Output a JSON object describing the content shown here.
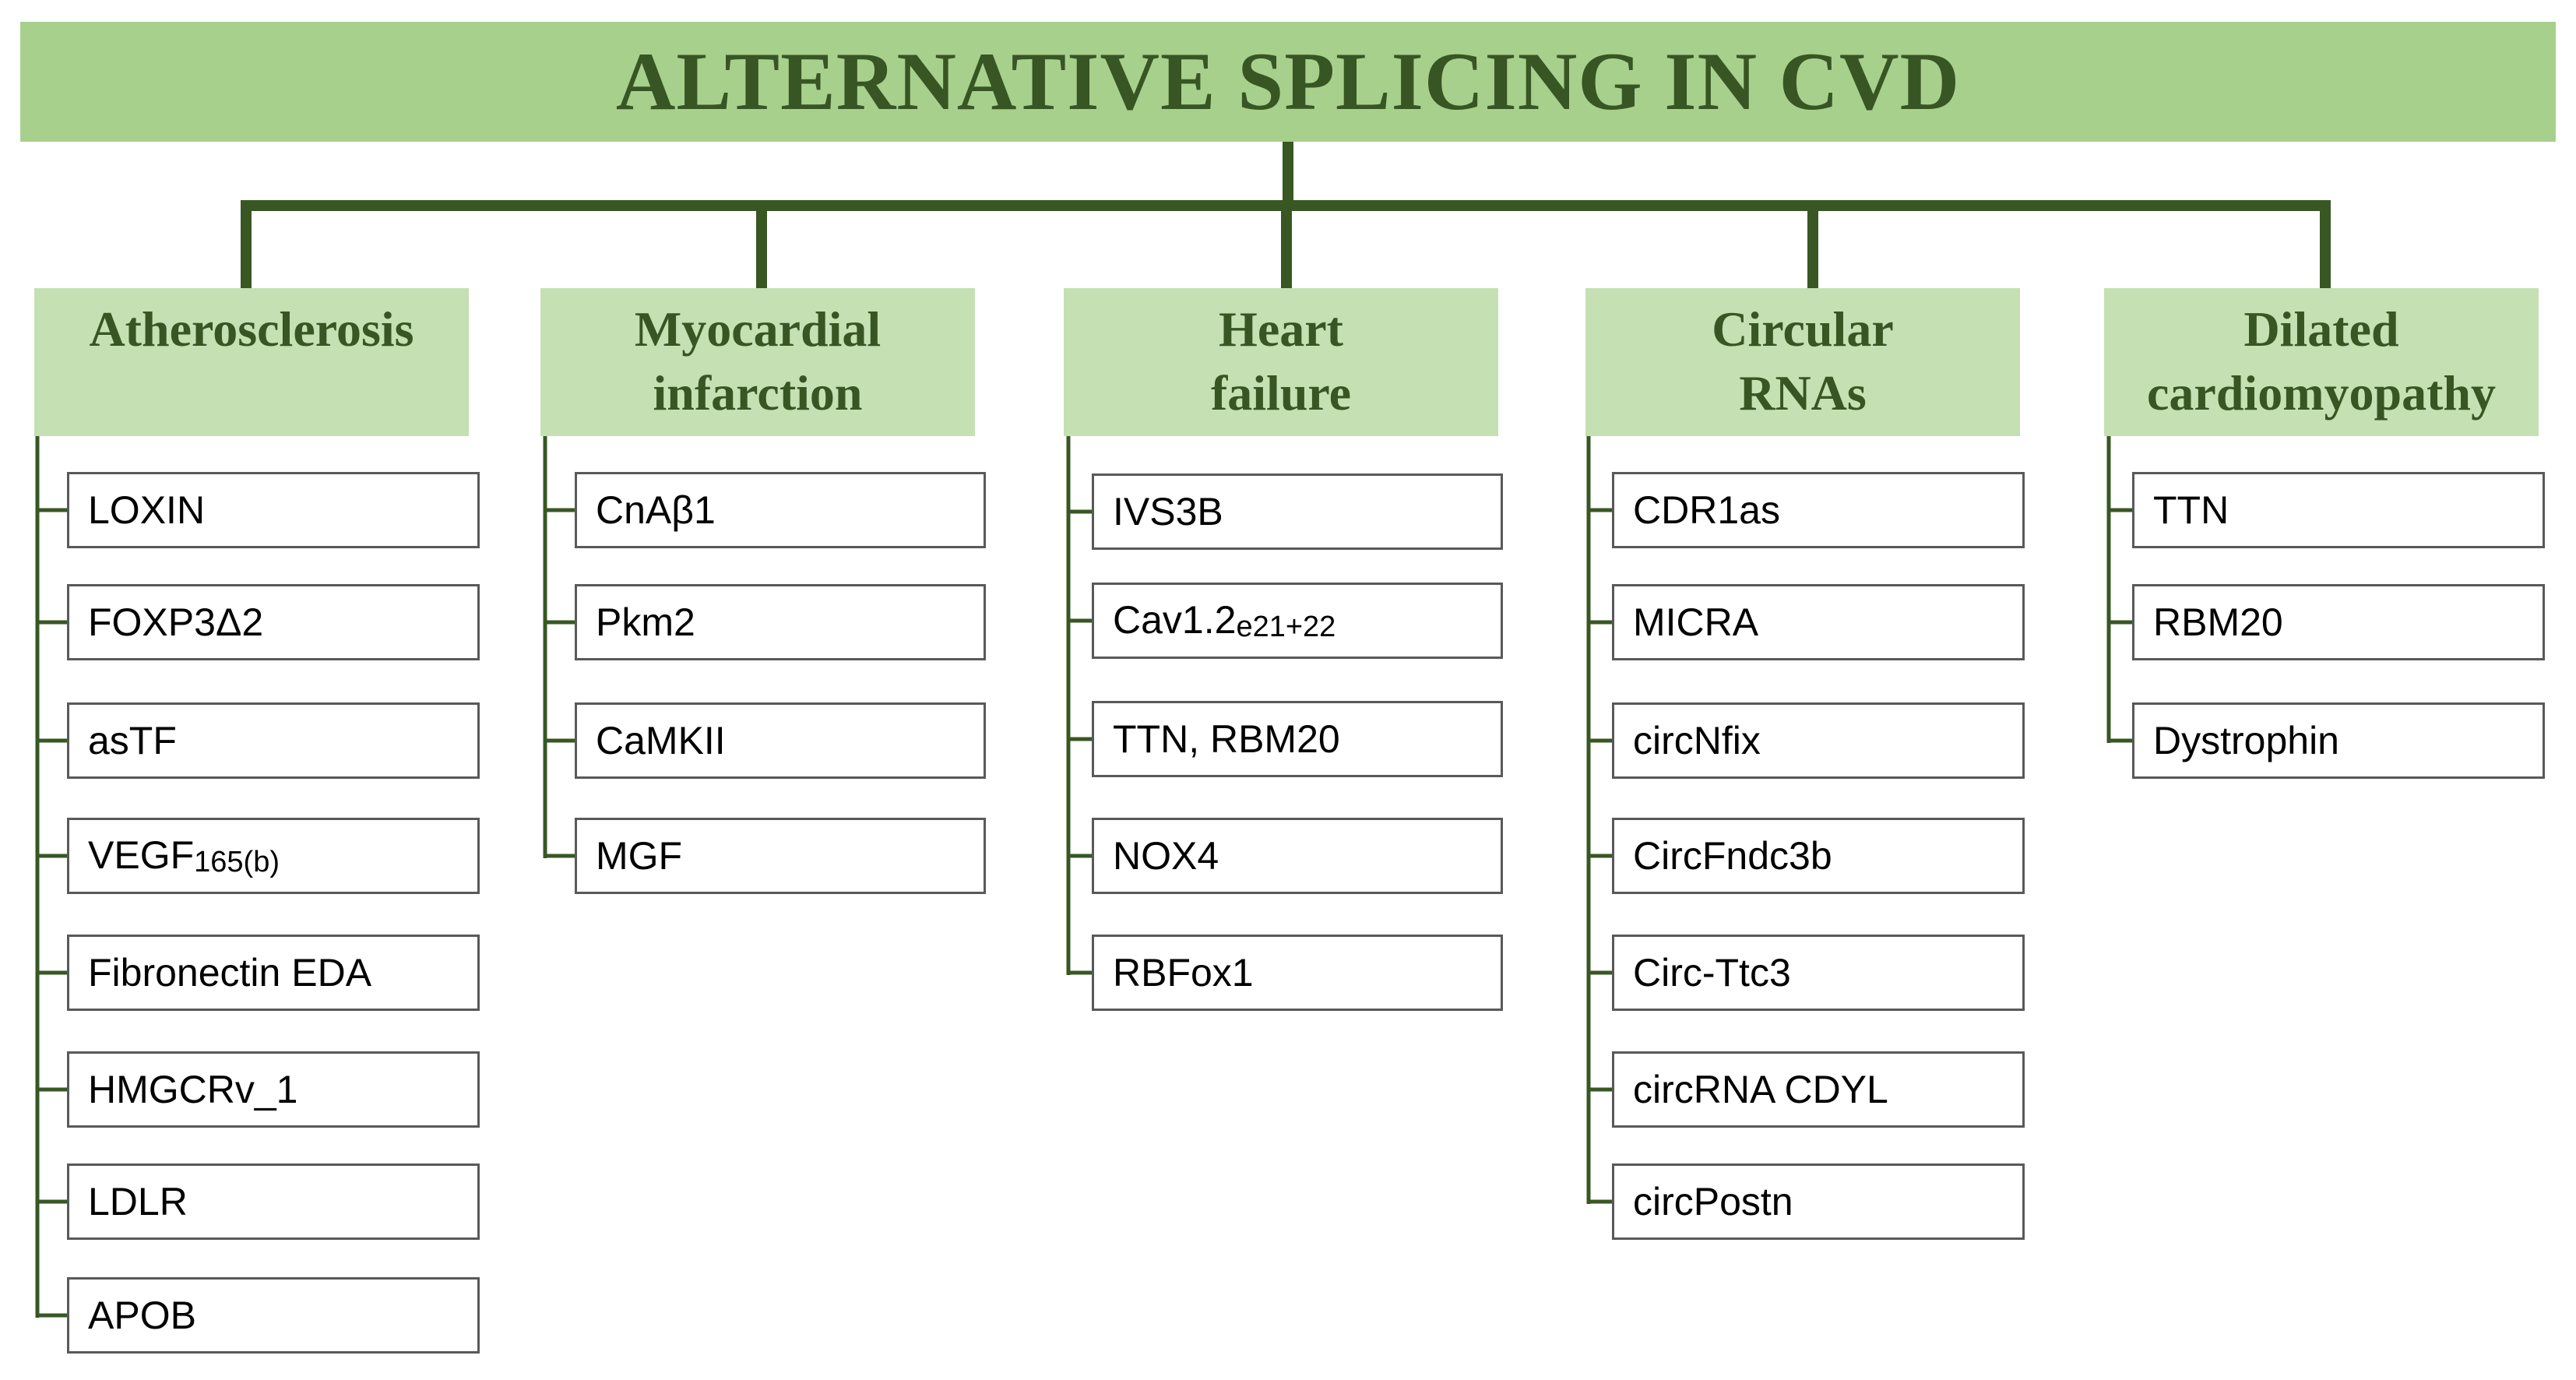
{
  "title": "ALTERNATIVE SPLICING IN CVD",
  "colors": {
    "title_bg": "#a8d08d",
    "header_bg": "#c5e0b3",
    "text_dark_green": "#375623",
    "connector": "#385723",
    "item_border": "#595959"
  },
  "categories": [
    {
      "label": "Atherosclerosis",
      "items": [
        {
          "text": "LOXIN",
          "sub": ""
        },
        {
          "text": "FOXP3Δ2",
          "sub": ""
        },
        {
          "text": "asTF",
          "sub": ""
        },
        {
          "text": "VEGF",
          "sub": "165(b)"
        },
        {
          "text": "Fibronectin EDA",
          "sub": ""
        },
        {
          "text": "HMGCRv_1",
          "sub": ""
        },
        {
          "text": "LDLR",
          "sub": ""
        },
        {
          "text": "APOB",
          "sub": ""
        }
      ]
    },
    {
      "label": "Myocardial\ninfarction",
      "items": [
        {
          "text": "CnAβ1",
          "sub": ""
        },
        {
          "text": "Pkm2",
          "sub": ""
        },
        {
          "text": "CaMKII",
          "sub": ""
        },
        {
          "text": "MGF",
          "sub": ""
        }
      ]
    },
    {
      "label": "Heart\nfailure",
      "items": [
        {
          "text": "IVS3B",
          "sub": ""
        },
        {
          "text": "Cav1.2",
          "sub": "e21+22"
        },
        {
          "text": "TTN, RBM20",
          "sub": ""
        },
        {
          "text": "NOX4",
          "sub": ""
        },
        {
          "text": "RBFox1",
          "sub": ""
        }
      ]
    },
    {
      "label": "Circular\nRNAs",
      "items": [
        {
          "text": "CDR1as",
          "sub": ""
        },
        {
          "text": "MICRA",
          "sub": ""
        },
        {
          "text": "circNfix",
          "sub": ""
        },
        {
          "text": "CircFndc3b",
          "sub": ""
        },
        {
          "text": "Circ-Ttc3",
          "sub": ""
        },
        {
          "text": "circRNA CDYL",
          "sub": ""
        },
        {
          "text": "circPostn",
          "sub": ""
        }
      ]
    },
    {
      "label": "Dilated\ncardiomyopathy",
      "items": [
        {
          "text": "TTN",
          "sub": ""
        },
        {
          "text": "RBM20",
          "sub": ""
        },
        {
          "text": "Dystrophin",
          "sub": ""
        }
      ]
    }
  ]
}
